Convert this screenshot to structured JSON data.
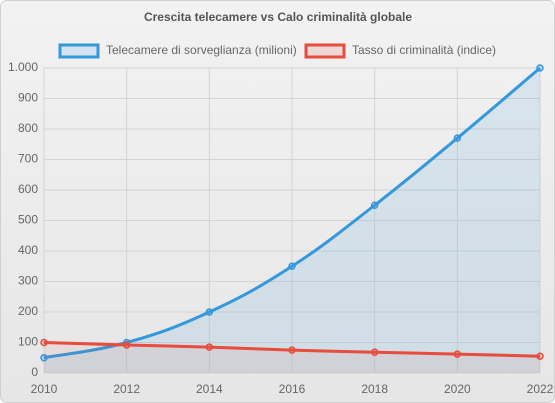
{
  "chart_data": {
    "type": "line",
    "title": "Crescita telecamere vs Calo criminalità globale",
    "categories": [
      "2010",
      "2012",
      "2014",
      "2016",
      "2018",
      "2020",
      "2022"
    ],
    "series": [
      {
        "name": "Telecamere di sorveglianza (milioni)",
        "color": "#3498db",
        "values": [
          50,
          100,
          200,
          350,
          550,
          770,
          1000
        ]
      },
      {
        "name": "Tasso di criminalità (indice)",
        "color": "#e74c3c",
        "values": [
          100,
          92,
          85,
          75,
          68,
          62,
          55
        ]
      }
    ],
    "ylim": [
      0,
      1000
    ],
    "yticks": [
      0,
      100,
      200,
      300,
      400,
      500,
      600,
      700,
      800,
      900,
      {
        "value": 1000,
        "label": "1.000"
      }
    ],
    "grid": true,
    "legend": "top",
    "fill": true
  }
}
